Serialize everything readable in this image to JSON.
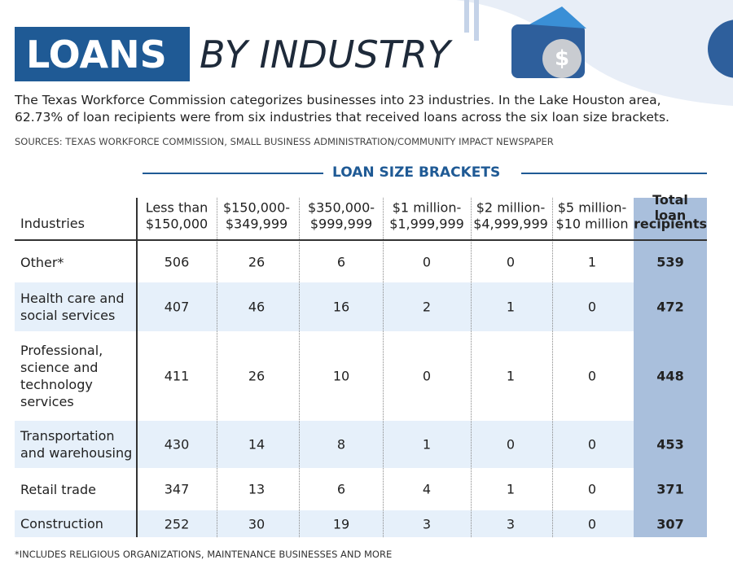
{
  "header": {
    "title_box": "LOANS",
    "title_rest": "BY INDUSTRY",
    "description": [
      "The Texas Workforce Commission categorizes businesses into 23 industries. In the Lake Houston area,",
      "62.73% of loan recipients were from six industries that received loans across the six loan size brackets."
    ],
    "sources": "SOURCES: TEXAS WORKFORCE COMMISSION, SMALL BUSINESS ADMINISTRATION/COMMUNITY IMPACT NEWSPAPER"
  },
  "table": {
    "group_header": "LOAN SIZE BRACKETS",
    "columns": [
      [
        "Industries"
      ],
      [
        "Less than",
        "$150,000"
      ],
      [
        "$150,000-",
        "$349,999"
      ],
      [
        "$350,000-",
        "$999,999"
      ],
      [
        "$1 million-",
        "$1,999,999"
      ],
      [
        "$2 million-",
        "$4,999,999"
      ],
      [
        "$5 million-",
        "$10 million"
      ],
      [
        "Total loan",
        "recipients"
      ]
    ],
    "rows": [
      {
        "label": [
          "Other*"
        ],
        "cells": [
          506,
          26,
          6,
          0,
          0,
          1,
          539
        ]
      },
      {
        "label": [
          "Health care and",
          "social services"
        ],
        "cells": [
          407,
          46,
          16,
          2,
          1,
          0,
          472
        ]
      },
      {
        "label": [
          "Professional,",
          "science and",
          "technology",
          "services"
        ],
        "cells": [
          411,
          26,
          10,
          0,
          1,
          0,
          448
        ]
      },
      {
        "label": [
          "Transportation",
          "and warehousing"
        ],
        "cells": [
          430,
          14,
          8,
          1,
          0,
          0,
          453
        ]
      },
      {
        "label": [
          "Retail trade"
        ],
        "cells": [
          347,
          13,
          6,
          4,
          1,
          0,
          371
        ]
      },
      {
        "label": [
          "Construction"
        ],
        "cells": [
          252,
          30,
          19,
          3,
          3,
          0,
          307
        ]
      }
    ]
  },
  "footnote": "*INCLUDES RELIGIOUS ORGANIZATIONS, MAINTENANCE BUSINESSES AND MORE"
}
